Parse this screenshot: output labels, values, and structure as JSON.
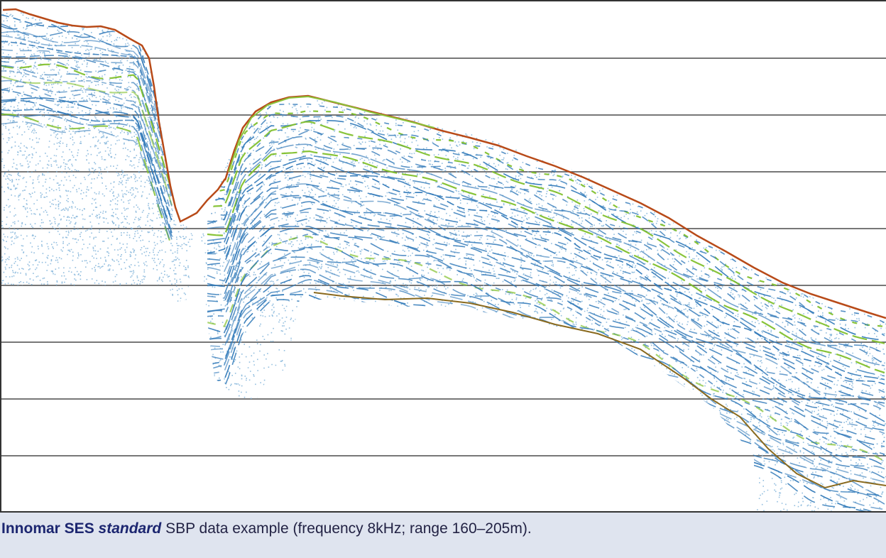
{
  "caption": {
    "brand": "Innomar SES",
    "mode": "standard",
    "rest": "SBP data example (frequency 8kHz; range 160–205m)."
  },
  "colors": {
    "background": "#ffffff",
    "gridline": "#4a4a4a",
    "seabed": "#b84a18",
    "reflector_strong": "#7fbf2a",
    "reflector_medium": "#2f78b8",
    "speckle": "#7fb3d9",
    "caption_bg": "#dfe4ef",
    "caption_text": "#1c2670"
  },
  "image_semantics": "sub-bottom-profiler-echogram"
}
